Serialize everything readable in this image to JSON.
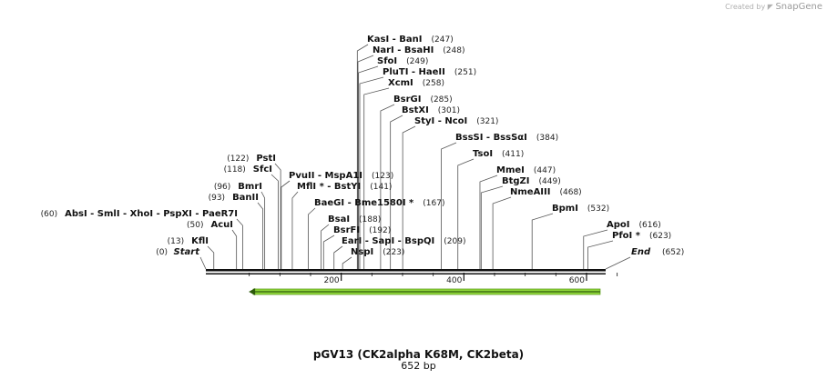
{
  "credit": {
    "prefix": "Created by",
    "brand": "SnapGene",
    "icon": "snapgene-logo-icon"
  },
  "map": {
    "title": "pGV13 (CK2alpha K68M, CK2beta)",
    "length_label": "652 bp",
    "length": 652,
    "ticks": [
      200,
      400,
      600
    ],
    "feature": {
      "type": "arrow",
      "direction": "reverse",
      "start": 70,
      "end": 643,
      "color": "#8fd63a"
    },
    "start_label": {
      "pos": "(0)",
      "name": "Start",
      "site": 0
    },
    "end_label": {
      "pos": "(652)",
      "name": "End",
      "site": 652
    },
    "sites": [
      {
        "name": "KasI  - BanI",
        "pos": "(247)",
        "site": 247
      },
      {
        "name": "NarI  - BsaHI",
        "pos": "(248)",
        "site": 248
      },
      {
        "name": "SfoI",
        "pos": "(249)",
        "site": 249
      },
      {
        "name": "PluTI  - HaeII",
        "pos": "(251)",
        "site": 251
      },
      {
        "name": "XcmI",
        "pos": "(258)",
        "site": 258
      },
      {
        "name": "BsrGI",
        "pos": "(285)",
        "site": 285
      },
      {
        "name": "BstXI",
        "pos": "(301)",
        "site": 301
      },
      {
        "name": "StyI  - NcoI",
        "pos": "(321)",
        "site": 321
      },
      {
        "name": "BssSI  - BssSαI",
        "pos": "(384)",
        "site": 384
      },
      {
        "name": "TsoI",
        "pos": "(411)",
        "site": 411
      },
      {
        "name": "MmeI",
        "pos": "(447)",
        "site": 447
      },
      {
        "name": "BtgZI",
        "pos": "(449)",
        "site": 449
      },
      {
        "name": "NmeAIII",
        "pos": "(468)",
        "site": 468
      },
      {
        "name": "BpmI",
        "pos": "(532)",
        "site": 532
      },
      {
        "name": "ApoI",
        "pos": "(616)",
        "site": 616
      },
      {
        "name": "PfoI *",
        "pos": "(623)",
        "site": 623
      },
      {
        "name": "PstI",
        "pos": "(122)",
        "site": 122
      },
      {
        "name": "SfcI",
        "pos": "(118)",
        "site": 118
      },
      {
        "name": "PvuII  - MspA1I",
        "pos": "(123)",
        "site": 123
      },
      {
        "name": "MflI *  - BstYI",
        "pos": "(141)",
        "site": 141
      },
      {
        "name": "BmrI",
        "pos": "(96)",
        "site": 96
      },
      {
        "name": "BanII",
        "pos": "(93)",
        "site": 93
      },
      {
        "name": "BaeGI  - Bme1580I *",
        "pos": "(167)",
        "site": 167
      },
      {
        "name": "AbsI  - SmlI  - XhoI  - PspXI  - PaeR7I",
        "pos": "(60)",
        "site": 60
      },
      {
        "name": "BsaI",
        "pos": "(188)",
        "site": 188
      },
      {
        "name": "AcuI",
        "pos": "(50)",
        "site": 50
      },
      {
        "name": "BsrFI",
        "pos": "(192)",
        "site": 192
      },
      {
        "name": "EarI  - SapI  - BspQI",
        "pos": "(209)",
        "site": 209
      },
      {
        "name": "KflI",
        "pos": "(13)",
        "site": 13
      },
      {
        "name": "NspI",
        "pos": "(223)",
        "site": 223
      }
    ]
  }
}
